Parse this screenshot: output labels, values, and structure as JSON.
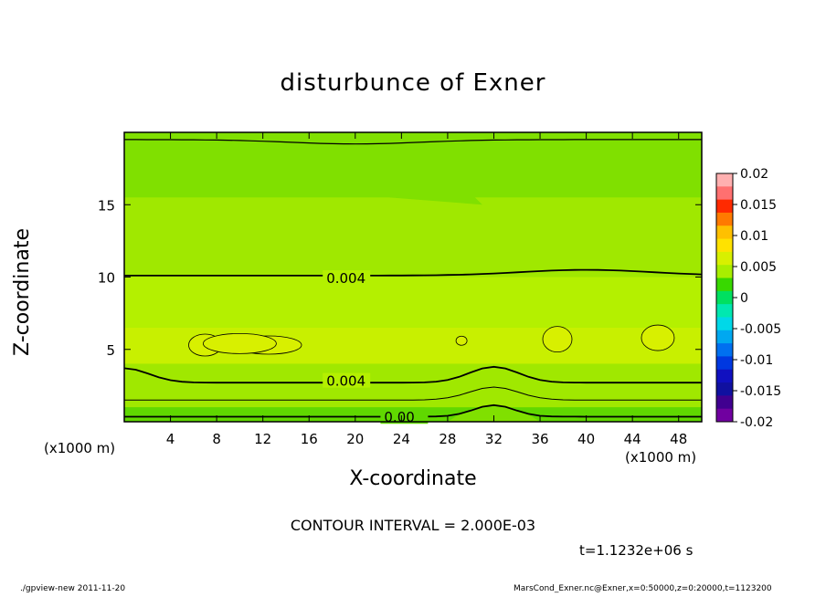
{
  "chart": {
    "title": "disturbunce of Exner",
    "x_axis_title": "X-coordinate",
    "y_axis_title": "Z-coordinate",
    "x_unit_left": "(x1000 m)",
    "x_unit_right": "(x1000 m)",
    "contour_interval": "CONTOUR INTERVAL = 2.000E-03",
    "time_label": "t=1.1232e+06 s",
    "footer_left": "./gpview-new   2011-11-20",
    "footer_right": "MarsCond_Exner.nc@Exner,x=0:50000,z=0:20000,t=1123200"
  },
  "chart_data": {
    "type": "heatmap",
    "title": "disturbunce of Exner",
    "xlabel": "X-coordinate",
    "ylabel": "Z-coordinate",
    "x_units": "(x1000 m)",
    "xlim": [
      0,
      50
    ],
    "ylim": [
      0,
      20
    ],
    "x_ticks": [
      4,
      8,
      12,
      16,
      20,
      24,
      28,
      32,
      36,
      40,
      44,
      48
    ],
    "y_ticks": [
      5,
      10,
      15
    ],
    "grid": false,
    "colorbar": {
      "range": [
        -0.02,
        0.02
      ],
      "ticks": [
        "0.02",
        "0.015",
        "0.01",
        "0.005",
        "0",
        "-0.005",
        "-0.01",
        "-0.015",
        "-0.02"
      ],
      "colors": [
        "#ffb0b0",
        "#ff7070",
        "#ff2a00",
        "#ff7a00",
        "#ffc000",
        "#ffe200",
        "#d8f000",
        "#a8ee00",
        "#38d800",
        "#00e060",
        "#00e8b0",
        "#00d8e8",
        "#00a8f0",
        "#0070f0",
        "#0038e0",
        "#1010c0",
        "#1010a0",
        "#400090",
        "#7000a0"
      ]
    },
    "contour_labels": [
      "0.004",
      "0.004",
      "0.00"
    ],
    "contour_interval": 0.002,
    "field_levels": [
      {
        "z_range": [
          16,
          20
        ],
        "value": 0.001,
        "color": "#80e000"
      },
      {
        "z_range": [
          10,
          15.5
        ],
        "value": 0.003,
        "color": "#a0e800"
      },
      {
        "z_range": [
          6.5,
          10
        ],
        "value": 0.004,
        "color": "#b4f000"
      },
      {
        "z_range": [
          4,
          6.5
        ],
        "value": 0.005,
        "color": "#c8f000"
      },
      {
        "z_range": [
          1,
          4
        ],
        "value": 0.003,
        "color": "#a0e800"
      },
      {
        "z_range": [
          0,
          1
        ],
        "value": 0.001,
        "color": "#60d800"
      }
    ],
    "time": "t=1.1232e+06 s"
  }
}
